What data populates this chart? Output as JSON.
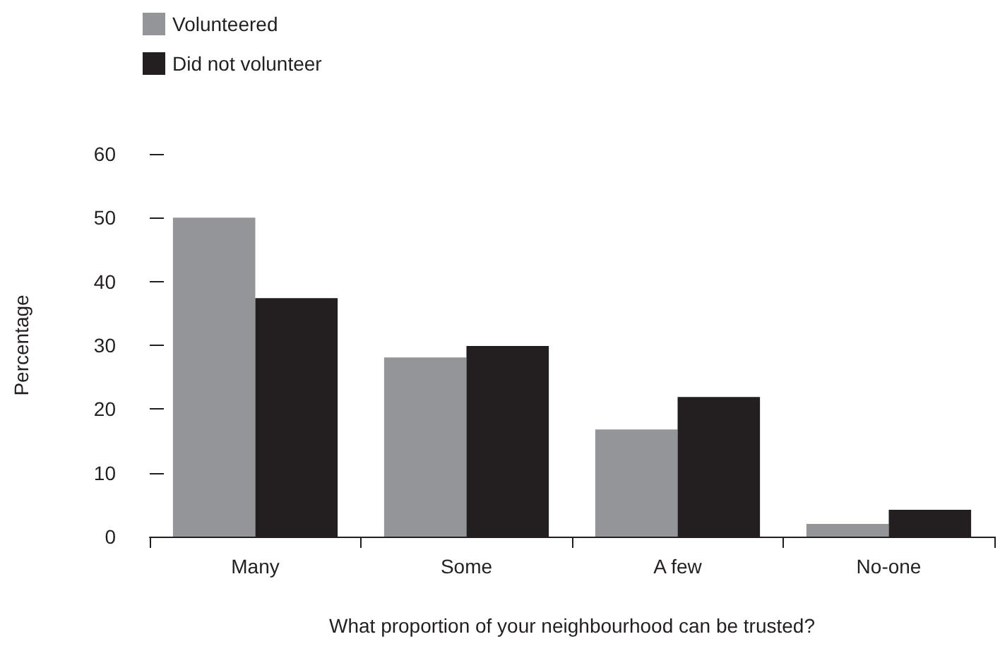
{
  "chart_data": {
    "type": "bar",
    "xlabel": "What proportion of your neighbourhood can be trusted?",
    "ylabel": "Percentage",
    "categories": [
      "Many",
      "Some",
      "A few",
      "No-one"
    ],
    "series": [
      {
        "name": "Volunteered",
        "color": "#939598",
        "values": [
          50.0,
          28.1,
          16.8,
          2.0
        ]
      },
      {
        "name": "Did not volunteer",
        "color": "#231f20",
        "values": [
          37.4,
          29.9,
          21.9,
          4.2
        ]
      }
    ],
    "ylim": [
      0,
      60
    ],
    "yticks": [
      0,
      10,
      20,
      30,
      40,
      50,
      60
    ],
    "grid": false,
    "legend": "top left"
  }
}
